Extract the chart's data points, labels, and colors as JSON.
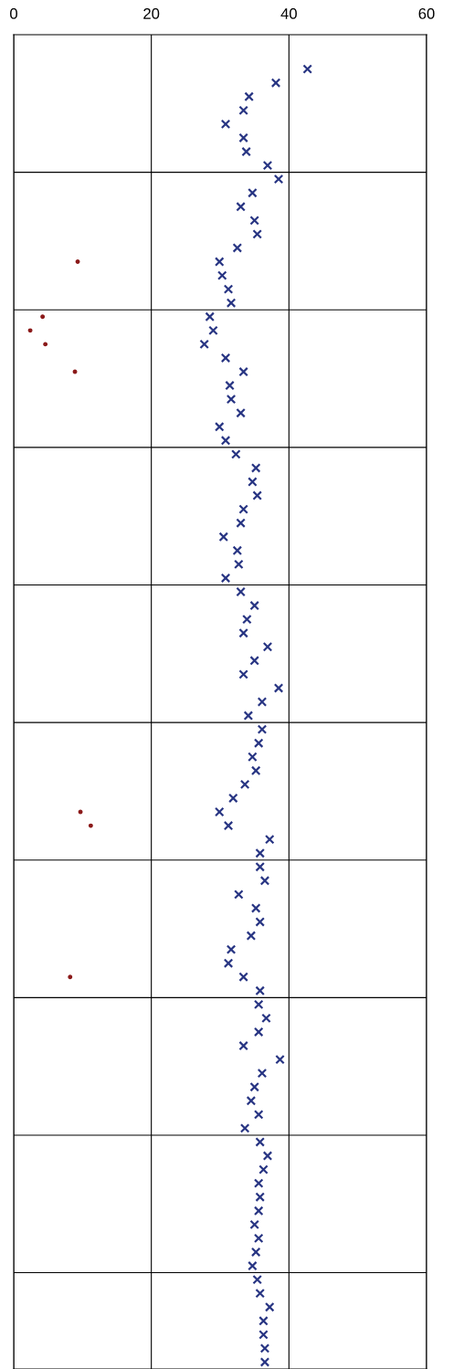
{
  "chart_data": {
    "type": "scatter",
    "orientation": "horizontal",
    "categories": [
      null,
      null,
      null,
      null,
      null,
      null,
      null,
      null,
      null,
      null,
      null,
      null,
      null,
      null,
      null,
      null,
      null,
      null,
      null,
      null,
      null,
      null,
      null,
      null,
      null,
      null,
      null,
      null,
      null,
      null,
      null,
      null,
      null,
      null,
      null,
      null,
      null,
      null,
      null,
      null,
      null,
      null,
      null,
      null,
      null,
      null,
      null,
      null,
      null,
      null,
      null,
      null,
      null,
      null,
      null,
      null,
      null,
      null,
      null,
      null,
      null,
      null,
      null,
      null,
      null,
      null,
      null,
      null,
      null,
      null,
      null,
      null,
      null,
      null,
      null,
      null,
      null,
      null,
      null,
      null,
      null,
      null,
      null,
      null,
      null,
      null,
      null,
      null,
      null,
      null,
      null,
      null,
      null,
      null,
      null,
      null,
      null
    ],
    "series": [
      {
        "color": "#283583",
        "marker": "cross",
        "values": [
          null,
          null,
          42.7,
          38.1,
          34.2,
          33.4,
          30.8,
          33.4,
          33.8,
          36.9,
          38.5,
          34.7,
          33.0,
          35.0,
          35.4,
          32.5,
          29.9,
          30.3,
          31.2,
          31.6,
          28.5,
          29.0,
          27.7,
          30.8,
          33.4,
          31.4,
          31.6,
          33.0,
          29.9,
          30.8,
          32.3,
          35.2,
          34.7,
          35.4,
          33.4,
          33.0,
          30.5,
          32.5,
          32.7,
          30.8,
          33.0,
          35.0,
          33.9,
          33.4,
          36.9,
          35.0,
          33.4,
          38.5,
          36.1,
          34.1,
          36.1,
          35.6,
          34.7,
          35.2,
          33.6,
          31.9,
          29.9,
          31.2,
          37.2,
          35.8,
          35.8,
          36.5,
          32.7,
          35.2,
          35.8,
          34.5,
          31.6,
          31.2,
          33.4,
          35.8,
          35.6,
          36.7,
          35.6,
          33.4,
          38.7,
          36.1,
          35.0,
          34.5,
          35.6,
          33.6,
          35.8,
          36.9,
          36.3,
          35.6,
          35.8,
          35.6,
          35.0,
          35.6,
          35.2,
          34.7,
          35.4,
          35.8,
          37.2,
          36.3,
          36.3,
          36.5,
          36.5
        ]
      },
      {
        "color": "#8b1a1a",
        "marker": "circle",
        "values": [
          null,
          null,
          null,
          null,
          null,
          null,
          null,
          null,
          null,
          null,
          null,
          null,
          null,
          null,
          null,
          null,
          9.3,
          null,
          null,
          null,
          4.2,
          2.4,
          4.6,
          null,
          8.9,
          null,
          null,
          null,
          null,
          null,
          null,
          null,
          null,
          null,
          null,
          null,
          null,
          null,
          null,
          null,
          null,
          null,
          null,
          null,
          null,
          null,
          null,
          null,
          null,
          null,
          null,
          null,
          null,
          null,
          null,
          null,
          9.7,
          11.2,
          null,
          null,
          null,
          null,
          null,
          null,
          null,
          null,
          null,
          null,
          8.2,
          null,
          null,
          null,
          null,
          null,
          null,
          null,
          null,
          null,
          null,
          null,
          null,
          null,
          null,
          null,
          null,
          null,
          null,
          null,
          null,
          null,
          null,
          null,
          null,
          null,
          null,
          null,
          null
        ]
      }
    ],
    "xlim": [
      0,
      60
    ],
    "xticks": [
      0,
      20,
      40,
      60
    ],
    "tick_labels": "x",
    "grid": true
  }
}
